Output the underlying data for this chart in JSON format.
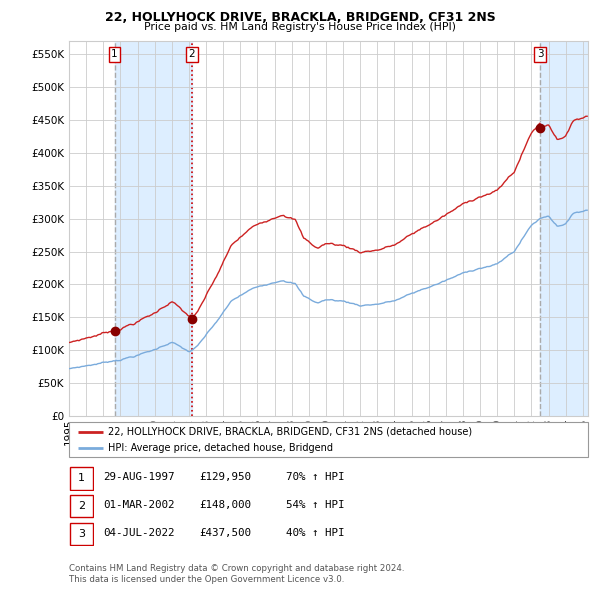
{
  "title1": "22, HOLLYHOCK DRIVE, BRACKLA, BRIDGEND, CF31 2NS",
  "title2": "Price paid vs. HM Land Registry's House Price Index (HPI)",
  "yticks": [
    0,
    50000,
    100000,
    150000,
    200000,
    250000,
    300000,
    350000,
    400000,
    450000,
    500000,
    550000
  ],
  "ylim": [
    0,
    570000
  ],
  "xlim_start": 1995.0,
  "xlim_end": 2025.3,
  "sale_dates": [
    1997.66,
    2002.17,
    2022.5
  ],
  "sale_prices": [
    129950,
    148000,
    437500
  ],
  "sale_labels": [
    "1",
    "2",
    "3"
  ],
  "vline1_color": "#aaaaaa",
  "vline1_style": "--",
  "vline2_color": "#cc0000",
  "vline2_style": ":",
  "vline3_color": "#aaaaaa",
  "vline3_style": "--",
  "shade_color": "#ddeeff",
  "sale_marker_color": "#880000",
  "legend_line1": "22, HOLLYHOCK DRIVE, BRACKLA, BRIDGEND, CF31 2NS (detached house)",
  "legend_line2": "HPI: Average price, detached house, Bridgend",
  "table_rows": [
    [
      "1",
      "29-AUG-1997",
      "£129,950",
      "70% ↑ HPI"
    ],
    [
      "2",
      "01-MAR-2002",
      "£148,000",
      "54% ↑ HPI"
    ],
    [
      "3",
      "04-JUL-2022",
      "£437,500",
      "40% ↑ HPI"
    ]
  ],
  "footnote1": "Contains HM Land Registry data © Crown copyright and database right 2024.",
  "footnote2": "This data is licensed under the Open Government Licence v3.0.",
  "hpi_color": "#7aabdc",
  "price_color": "#cc2222",
  "grid_color": "#cccccc",
  "background_color": "#ffffff",
  "label_box_color": "#cc0000"
}
